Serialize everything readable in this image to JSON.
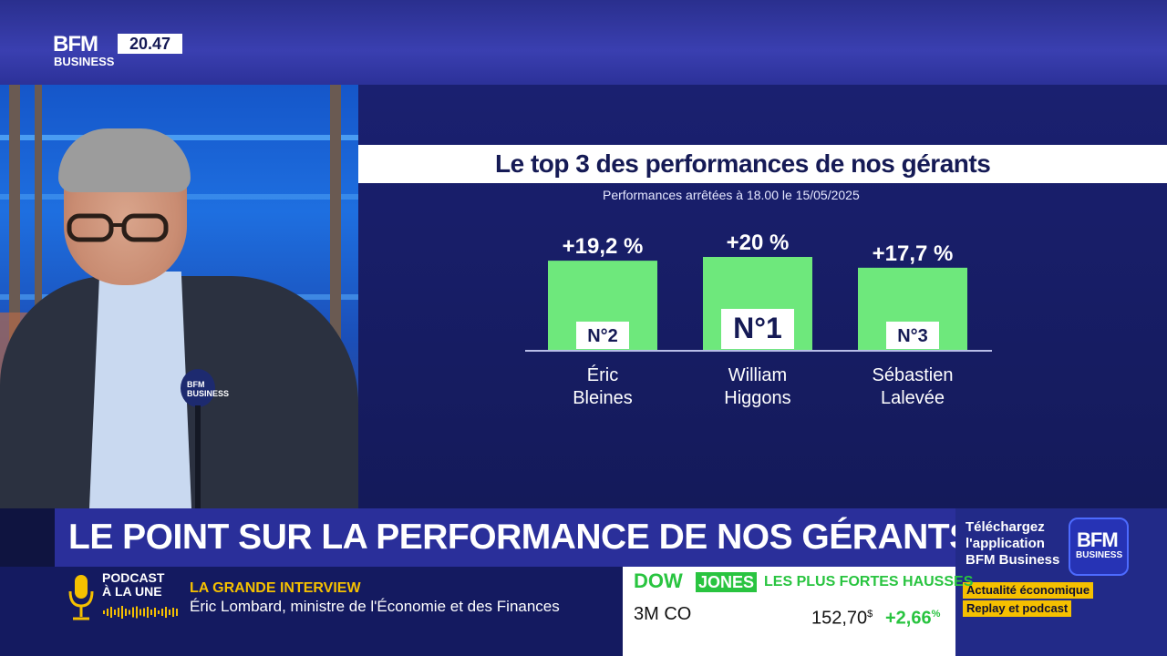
{
  "channel": {
    "logo_top": "BFM",
    "logo_bottom": "BUSINESS",
    "time": "20.47"
  },
  "graphic": {
    "title": "Le top 3 des performances de nos gérants",
    "subtitle": "Performances arrêtées à 18.00 le 15/05/2025"
  },
  "chart_data": {
    "type": "bar",
    "categories": [
      "Éric Bleines",
      "William Higgons",
      "Sébastien Lalevée"
    ],
    "category_lines": [
      [
        "Éric",
        "Bleines"
      ],
      [
        "William",
        "Higgons"
      ],
      [
        "Sébastien",
        "Lalevée"
      ]
    ],
    "values": [
      19.2,
      20,
      17.7
    ],
    "value_labels": [
      "+19,2 %",
      "+20 %",
      "+17,7 %"
    ],
    "rank_labels": [
      "N°2",
      "N°1",
      "N°3"
    ],
    "title": "Le top 3 des performances de nos gérants",
    "xlabel": "",
    "ylabel": "",
    "ylim": [
      0,
      20
    ],
    "grid": false,
    "legend": "none",
    "bar_color": "#6ee87c"
  },
  "studio": {
    "mic_label": "BFM BUSINESS"
  },
  "headline": "LE POINT SUR LA PERFORMANCE DE NOS GÉRANTS",
  "promo": {
    "text": "Téléchargez l'application BFM Business",
    "logo_top": "BFM",
    "logo_bottom": "BUSINESS",
    "tag1": "Actualité économique",
    "tag2": "Replay et podcast"
  },
  "podcast": {
    "label_line1": "PODCAST",
    "label_line2": "À LA UNE",
    "icon": "microphone-icon"
  },
  "interview": {
    "title": "LA GRANDE INTERVIEW",
    "subtitle": "Éric Lombard, ministre de l'Économie et des Finances"
  },
  "ticker": {
    "index_part1": "DOW",
    "index_part2": "JONES",
    "category": "LES PLUS FORTES HAUSSES",
    "stock": "3M CO",
    "price": "152,70",
    "currency": "$",
    "change": "+2,66",
    "change_unit": "%"
  },
  "colors": {
    "accent_blue": "#2a2f9a",
    "positive_green": "#29c440",
    "tag_yellow": "#f5c000"
  }
}
